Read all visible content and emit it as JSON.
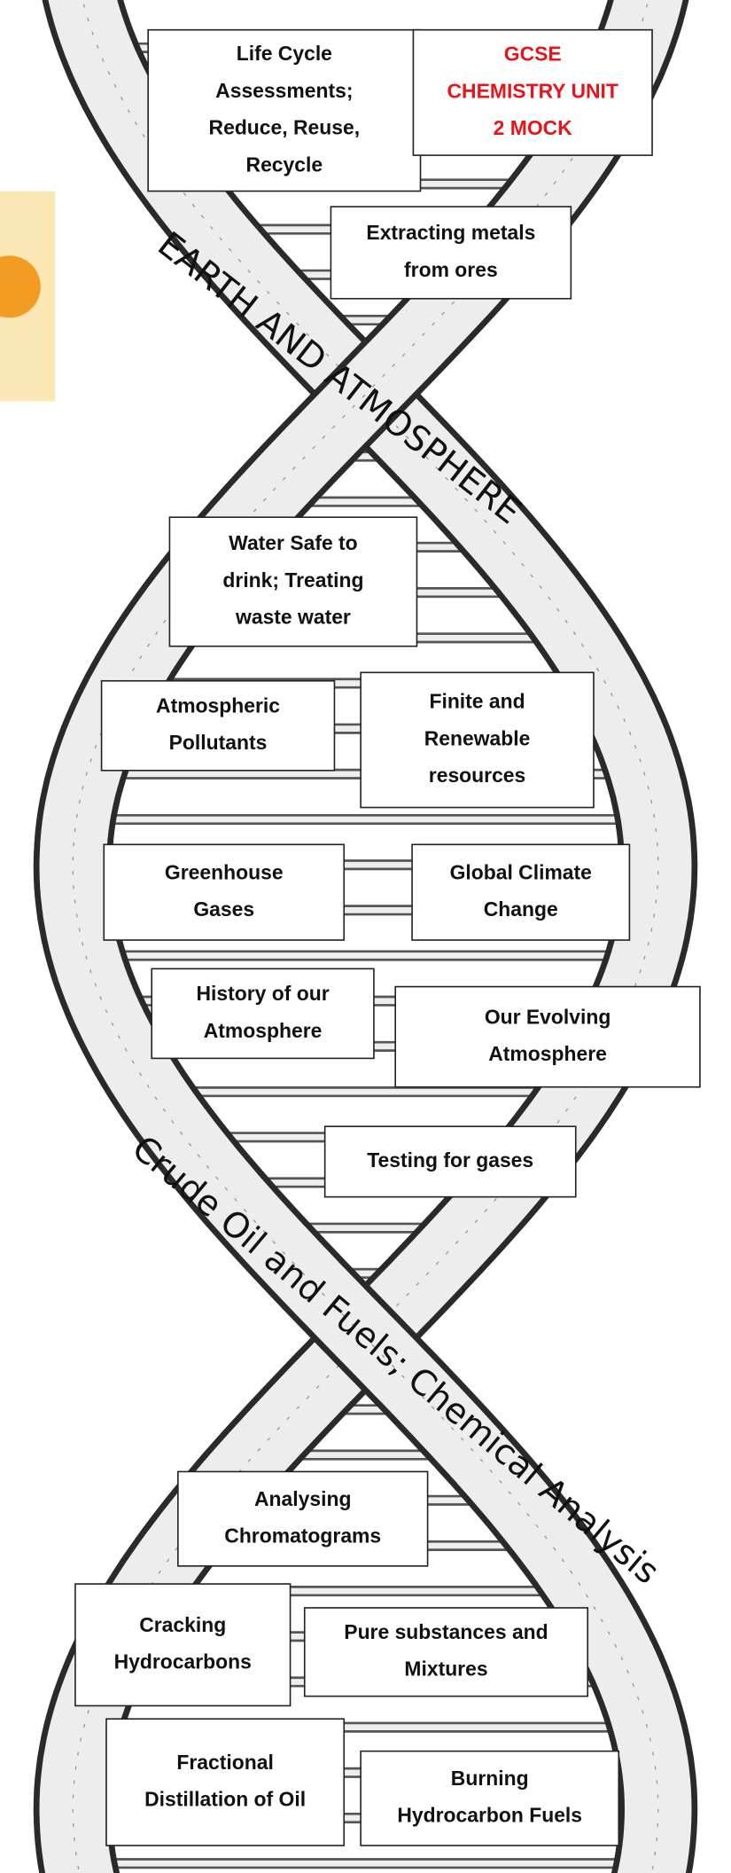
{
  "title": {
    "lines": [
      "GCSE",
      "CHEMISTRY UNIT",
      "2 MOCK"
    ]
  },
  "sections": [
    {
      "label": "EARTH AND ATMOSPHERE"
    },
    {
      "label": "Crude Oil and Fuels; Chemical Analysis"
    }
  ],
  "topics": [
    {
      "lines": [
        "Life Cycle",
        "Assessments;",
        "Reduce, Reuse,",
        "Recycle"
      ]
    },
    {
      "lines": [
        "Extracting metals",
        "from ores"
      ]
    },
    {
      "lines": [
        "Water Safe to",
        "drink; Treating",
        "waste water"
      ]
    },
    {
      "lines": [
        "Atmospheric",
        "Pollutants"
      ]
    },
    {
      "lines": [
        "Finite and",
        "Renewable",
        "resources"
      ]
    },
    {
      "lines": [
        "Greenhouse",
        "Gases"
      ]
    },
    {
      "lines": [
        "Global Climate",
        "Change"
      ]
    },
    {
      "lines": [
        "History of our",
        "Atmosphere"
      ]
    },
    {
      "lines": [
        "Our Evolving",
        "Atmosphere"
      ]
    },
    {
      "lines": [
        "Testing for gases"
      ]
    },
    {
      "lines": [
        "Analysing",
        "Chromatograms"
      ]
    },
    {
      "lines": [
        "Cracking",
        "Hydrocarbons"
      ]
    },
    {
      "lines": [
        "Pure substances and",
        "Mixtures"
      ]
    },
    {
      "lines": [
        "Fractional",
        "Distillation of Oil"
      ]
    },
    {
      "lines": [
        "Burning",
        "Hydrocarbon Fuels"
      ]
    }
  ]
}
